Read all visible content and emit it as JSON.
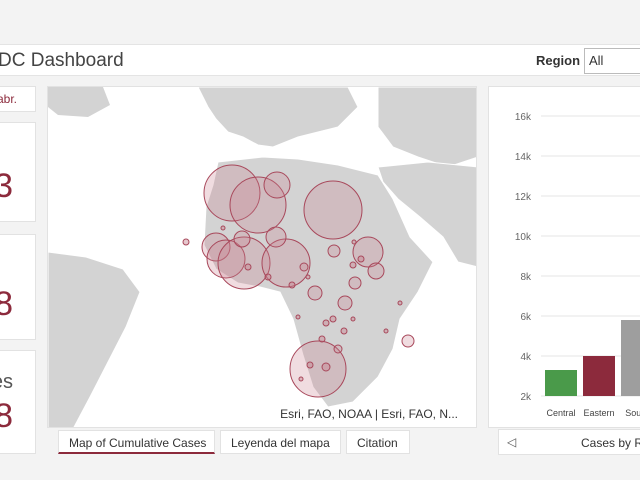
{
  "header": {
    "title": "DC Dashboard",
    "region_label": "Region",
    "region_value": "All"
  },
  "stats": {
    "abbr": "abr.",
    "stat1_value": "3",
    "stat2_value": "8",
    "stat3_label": "es",
    "stat3_value": "8"
  },
  "map": {
    "attribution": "Esri, FAO, NOAA | Esri, FAO, N..."
  },
  "tabs": [
    {
      "label": "Map of Cumulative Cases"
    },
    {
      "label": "Leyenda del mapa"
    },
    {
      "label": "Citation"
    }
  ],
  "chart_footer": {
    "title": "Cases by Re"
  },
  "colors": {
    "accent": "#8c2a3c",
    "bar_central": "#4a9a4a",
    "bar_eastern": "#8c2a3c",
    "bar_south": "#9e9e9e"
  },
  "chart_data": {
    "type": "bar",
    "categories": [
      "Central",
      "Eastern",
      "South"
    ],
    "values": [
      3300,
      4000,
      5800
    ],
    "yticks": [
      "16k",
      "14k",
      "12k",
      "10k",
      "8k",
      "6k",
      "4k",
      "2k"
    ],
    "ylim": [
      2000,
      16000
    ],
    "grid": true
  }
}
